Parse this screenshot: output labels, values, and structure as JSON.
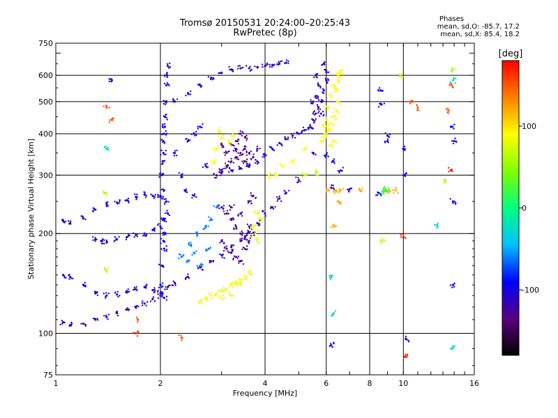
{
  "title": "Tromsø 20150531 20:24:00–20:25:43",
  "subtitle": "RwPretec (8p)",
  "phase_header": "Phases",
  "phase_o": "mean, sd,O: -85.7, 17.2",
  "phase_x": "mean, sd,X:  85.4, 18.2",
  "chart_data": {
    "type": "scatter",
    "xlabel": "Frequency [MHz]",
    "ylabel": "Stationary phase Virtual Height [km]",
    "x_scale": "log",
    "y_scale": "log",
    "xlim": [
      1,
      16
    ],
    "ylim": [
      75,
      750
    ],
    "x_ticks": [
      1,
      2,
      4,
      6,
      8,
      10,
      16
    ],
    "x_tick_labels": [
      "1",
      "2",
      "4",
      "6",
      "8",
      "10",
      "16"
    ],
    "y_ticks": [
      75,
      100,
      200,
      300,
      400,
      500,
      600,
      750
    ],
    "y_tick_labels": [
      "75",
      "100",
      "200",
      "300",
      "400",
      "500",
      "600",
      "750"
    ],
    "grid": true,
    "colorbar": {
      "label": "[deg]",
      "range": [
        -180,
        180
      ],
      "ticks": [
        100,
        0,
        -100
      ],
      "tick_labels": [
        "100",
        "0",
        "-100"
      ],
      "stops": [
        "#000000",
        "#5a0080",
        "#0000ff",
        "#00c0ff",
        "#00ff80",
        "#80ff00",
        "#ffff00",
        "#ff8000",
        "#ff0000"
      ]
    },
    "series": [
      {
        "phase": -115,
        "points": [
          [
            1.05,
            108
          ],
          [
            1.1,
            106
          ],
          [
            1.2,
            107
          ],
          [
            1.3,
            110
          ],
          [
            1.4,
            112
          ],
          [
            1.5,
            115
          ],
          [
            1.6,
            118
          ],
          [
            1.7,
            120
          ],
          [
            1.8,
            123
          ],
          [
            1.9,
            127
          ],
          [
            2.0,
            132
          ],
          [
            2.1,
            138
          ],
          [
            2.2,
            142
          ],
          [
            2.4,
            148
          ],
          [
            2.6,
            158
          ],
          [
            2.8,
            165
          ],
          [
            3.0,
            172
          ],
          [
            3.2,
            182
          ],
          [
            3.4,
            190
          ],
          [
            3.6,
            202
          ],
          [
            3.8,
            215
          ],
          [
            4.0,
            230
          ],
          [
            4.2,
            240
          ],
          [
            4.4,
            255
          ],
          [
            4.6,
            265
          ],
          [
            5.0,
            290
          ],
          [
            5.5,
            350
          ]
        ]
      },
      {
        "phase": -105,
        "points": [
          [
            1.05,
            150
          ],
          [
            1.1,
            148
          ],
          [
            1.2,
            140
          ],
          [
            1.3,
            132
          ],
          [
            1.4,
            130
          ],
          [
            1.5,
            131
          ],
          [
            1.6,
            134
          ],
          [
            1.7,
            136
          ],
          [
            1.8,
            138
          ],
          [
            1.9,
            135
          ],
          [
            2.0,
            130
          ],
          [
            2.05,
            128
          ]
        ]
      },
      {
        "phase": -110,
        "points": [
          [
            1.3,
            192
          ],
          [
            1.35,
            190
          ],
          [
            1.4,
            188
          ],
          [
            1.5,
            192
          ],
          [
            1.6,
            195
          ],
          [
            1.7,
            198
          ],
          [
            1.8,
            200
          ],
          [
            1.9,
            205
          ],
          [
            2.0,
            210
          ],
          [
            2.05,
            220
          ]
        ]
      },
      {
        "phase": -108,
        "points": [
          [
            1.05,
            218
          ],
          [
            1.1,
            215
          ],
          [
            1.2,
            222
          ],
          [
            1.3,
            236
          ],
          [
            1.4,
            245
          ],
          [
            1.5,
            248
          ],
          [
            1.6,
            252
          ],
          [
            1.7,
            258
          ],
          [
            1.8,
            262
          ],
          [
            1.9,
            260
          ],
          [
            2.0,
            258
          ],
          [
            2.05,
            270
          ]
        ]
      },
      {
        "phase": -100,
        "points": [
          [
            2.0,
            260
          ],
          [
            2.02,
            300
          ],
          [
            2.04,
            350
          ],
          [
            2.05,
            400
          ],
          [
            2.06,
            450
          ],
          [
            2.07,
            500
          ],
          [
            2.08,
            560
          ],
          [
            2.09,
            600
          ],
          [
            2.1,
            640
          ],
          [
            2.06,
            420
          ],
          [
            2.04,
            380
          ],
          [
            2.03,
            330
          ]
        ]
      },
      {
        "phase": -95,
        "points": [
          [
            2.0,
            140
          ],
          [
            2.02,
            160
          ],
          [
            2.05,
            180
          ],
          [
            2.07,
            200
          ],
          [
            2.1,
            230
          ],
          [
            2.08,
            250
          ],
          [
            2.05,
            220
          ],
          [
            2.04,
            190
          ]
        ]
      },
      {
        "phase": -110,
        "points": [
          [
            2.2,
            500
          ],
          [
            2.4,
            530
          ],
          [
            2.6,
            560
          ],
          [
            2.8,
            590
          ],
          [
            3.0,
            610
          ],
          [
            3.2,
            625
          ],
          [
            3.4,
            630
          ],
          [
            3.6,
            630
          ],
          [
            3.8,
            635
          ],
          [
            4.0,
            640
          ],
          [
            4.2,
            645
          ],
          [
            4.4,
            650
          ],
          [
            4.6,
            655
          ]
        ]
      },
      {
        "phase": -105,
        "points": [
          [
            2.2,
            350
          ],
          [
            2.4,
            380
          ],
          [
            2.5,
            400
          ],
          [
            2.6,
            420
          ],
          [
            2.3,
            300
          ],
          [
            2.35,
            270
          ],
          [
            2.5,
            260
          ],
          [
            2.7,
            320
          ]
        ]
      },
      {
        "phase": -130,
        "points": [
          [
            2.9,
            300
          ],
          [
            3.0,
            310
          ],
          [
            3.1,
            320
          ],
          [
            3.2,
            330
          ],
          [
            3.3,
            340
          ],
          [
            3.4,
            350
          ],
          [
            3.5,
            360
          ],
          [
            3.6,
            350
          ],
          [
            3.3,
            380
          ],
          [
            3.4,
            400
          ],
          [
            3.2,
            370
          ],
          [
            3.5,
            330
          ],
          [
            3.6,
            320
          ],
          [
            3.7,
            340
          ],
          [
            3.8,
            360
          ],
          [
            3.1,
            350
          ],
          [
            3.0,
            370
          ],
          [
            3.3,
            360
          ],
          [
            3.5,
            390
          ]
        ]
      },
      {
        "phase": -125,
        "points": [
          [
            3.0,
            240
          ],
          [
            3.1,
            230
          ],
          [
            3.2,
            220
          ],
          [
            3.3,
            210
          ],
          [
            3.4,
            200
          ],
          [
            3.5,
            195
          ],
          [
            3.0,
            190
          ],
          [
            3.1,
            180
          ],
          [
            3.2,
            175
          ],
          [
            3.3,
            170
          ],
          [
            3.4,
            165
          ],
          [
            3.5,
            180
          ],
          [
            3.6,
            190
          ],
          [
            3.7,
            200
          ],
          [
            3.2,
            240
          ],
          [
            3.4,
            230
          ],
          [
            3.6,
            250
          ],
          [
            3.7,
            260
          ],
          [
            3.6,
            210
          ]
        ]
      },
      {
        "phase": -110,
        "points": [
          [
            3.0,
            305
          ],
          [
            3.2,
            310
          ],
          [
            3.4,
            315
          ],
          [
            3.6,
            320
          ],
          [
            3.8,
            330
          ],
          [
            4.0,
            345
          ],
          [
            4.2,
            360
          ],
          [
            4.4,
            375
          ],
          [
            4.6,
            385
          ],
          [
            4.8,
            395
          ],
          [
            5.0,
            400
          ],
          [
            5.2,
            410
          ],
          [
            5.4,
            420
          ]
        ]
      },
      {
        "phase": -112,
        "points": [
          [
            5.4,
            420
          ],
          [
            5.5,
            440
          ],
          [
            5.6,
            460
          ],
          [
            5.7,
            480
          ],
          [
            5.8,
            500
          ],
          [
            5.9,
            540
          ],
          [
            6.0,
            580
          ],
          [
            6.0,
            620
          ],
          [
            5.9,
            650
          ],
          [
            5.6,
            600
          ],
          [
            5.7,
            560
          ],
          [
            5.5,
            500
          ],
          [
            5.6,
            520
          ],
          [
            5.8,
            460
          ]
        ]
      },
      {
        "phase": 90,
        "points": [
          [
            5.8,
            380
          ],
          [
            5.9,
            390
          ],
          [
            6.0,
            400
          ],
          [
            6.1,
            410
          ],
          [
            6.2,
            430
          ],
          [
            6.3,
            450
          ],
          [
            6.4,
            470
          ],
          [
            6.5,
            500
          ],
          [
            6.4,
            540
          ],
          [
            6.5,
            580
          ],
          [
            6.6,
            620
          ],
          [
            6.5,
            600
          ],
          [
            6.3,
            560
          ],
          [
            6.2,
            520
          ],
          [
            6.1,
            480
          ],
          [
            6.0,
            440
          ],
          [
            5.9,
            420
          ],
          [
            6.3,
            380
          ],
          [
            6.2,
            370
          ]
        ]
      },
      {
        "phase": 85,
        "points": [
          [
            2.6,
            125
          ],
          [
            2.7,
            128
          ],
          [
            2.8,
            130
          ],
          [
            2.9,
            132
          ],
          [
            3.0,
            134
          ],
          [
            3.1,
            136
          ],
          [
            3.2,
            140
          ],
          [
            3.3,
            142
          ],
          [
            3.4,
            145
          ],
          [
            3.5,
            148
          ],
          [
            3.6,
            152
          ],
          [
            3.2,
            130
          ],
          [
            3.0,
            128
          ],
          [
            3.4,
            140
          ]
        ]
      },
      {
        "phase": 80,
        "points": [
          [
            3.7,
            210
          ],
          [
            3.8,
            190
          ],
          [
            3.75,
            200
          ],
          [
            3.8,
            230
          ],
          [
            3.9,
            220
          ]
        ]
      },
      {
        "phase": 90,
        "points": [
          [
            2.85,
            330
          ],
          [
            2.9,
            360
          ],
          [
            3.0,
            390
          ],
          [
            2.95,
            410
          ],
          [
            3.15,
            375
          ],
          [
            3.25,
            395
          ],
          [
            4.1,
            300
          ],
          [
            4.3,
            300
          ],
          [
            4.5,
            320
          ],
          [
            4.8,
            330
          ],
          [
            5.2,
            360
          ]
        ]
      },
      {
        "phase": -60,
        "points": [
          [
            2.3,
            170
          ],
          [
            2.4,
            165
          ],
          [
            2.5,
            175
          ],
          [
            2.6,
            160
          ],
          [
            2.45,
            185
          ],
          [
            2.55,
            200
          ],
          [
            2.7,
            210
          ],
          [
            2.8,
            220
          ],
          [
            2.9,
            240
          ],
          [
            2.75,
            180
          ]
        ]
      },
      {
        "phase": 120,
        "points": [
          [
            6.1,
            270
          ],
          [
            6.4,
            270
          ],
          [
            6.6,
            270
          ],
          [
            7.5,
            270
          ],
          [
            8.8,
            270
          ],
          [
            9.1,
            270
          ],
          [
            9.5,
            270
          ],
          [
            6.5,
            250
          ],
          [
            6.3,
            210
          ]
        ]
      },
      {
        "phase": 20,
        "points": [
          [
            8.7,
            268
          ],
          [
            8.8,
            272
          ],
          [
            8.85,
            270
          ],
          [
            8.9,
            270
          ]
        ]
      },
      {
        "phase": -100,
        "points": [
          [
            8.5,
            265
          ],
          [
            7.0,
            272
          ],
          [
            6.2,
            275
          ],
          [
            6.0,
            345
          ],
          [
            6.6,
            310
          ],
          [
            6.3,
            330
          ]
        ]
      },
      {
        "phase": 150,
        "points": [
          [
            1.4,
            480
          ],
          [
            1.45,
            440
          ],
          [
            1.72,
            110
          ],
          [
            2.3,
            97
          ],
          [
            10.5,
            500
          ],
          [
            11.0,
            480
          ],
          [
            13.5,
            470
          ],
          [
            13.8,
            560
          ]
        ]
      },
      {
        "phase": -90,
        "points": [
          [
            1.45,
            580
          ],
          [
            8.6,
            540
          ],
          [
            8.65,
            490
          ],
          [
            9.0,
            380
          ],
          [
            9.0,
            395
          ],
          [
            10.0,
            360
          ],
          [
            10.1,
            300
          ],
          [
            13.9,
            140
          ],
          [
            10.2,
            96
          ],
          [
            6.2,
            92
          ],
          [
            13.8,
            420
          ],
          [
            14.0,
            380
          ],
          [
            13.9,
            250
          ]
        ]
      },
      {
        "phase": 170,
        "points": [
          [
            1.7,
            100
          ],
          [
            10.0,
            195
          ],
          [
            13.7,
            310
          ],
          [
            10.1,
            85
          ]
        ]
      },
      {
        "phase": 60,
        "points": [
          [
            5.6,
            305
          ],
          [
            5.2,
            300
          ],
          [
            1.4,
            155
          ],
          [
            1.38,
            265
          ],
          [
            13.8,
            620
          ],
          [
            9.8,
            600
          ],
          [
            13.2,
            290
          ],
          [
            8.7,
            190
          ]
        ]
      },
      {
        "phase": -30,
        "points": [
          [
            13.8,
            90
          ],
          [
            13.9,
            580
          ],
          [
            1.4,
            360
          ],
          [
            6.3,
            115
          ],
          [
            6.2,
            148
          ],
          [
            12.5,
            212
          ]
        ]
      }
    ]
  }
}
